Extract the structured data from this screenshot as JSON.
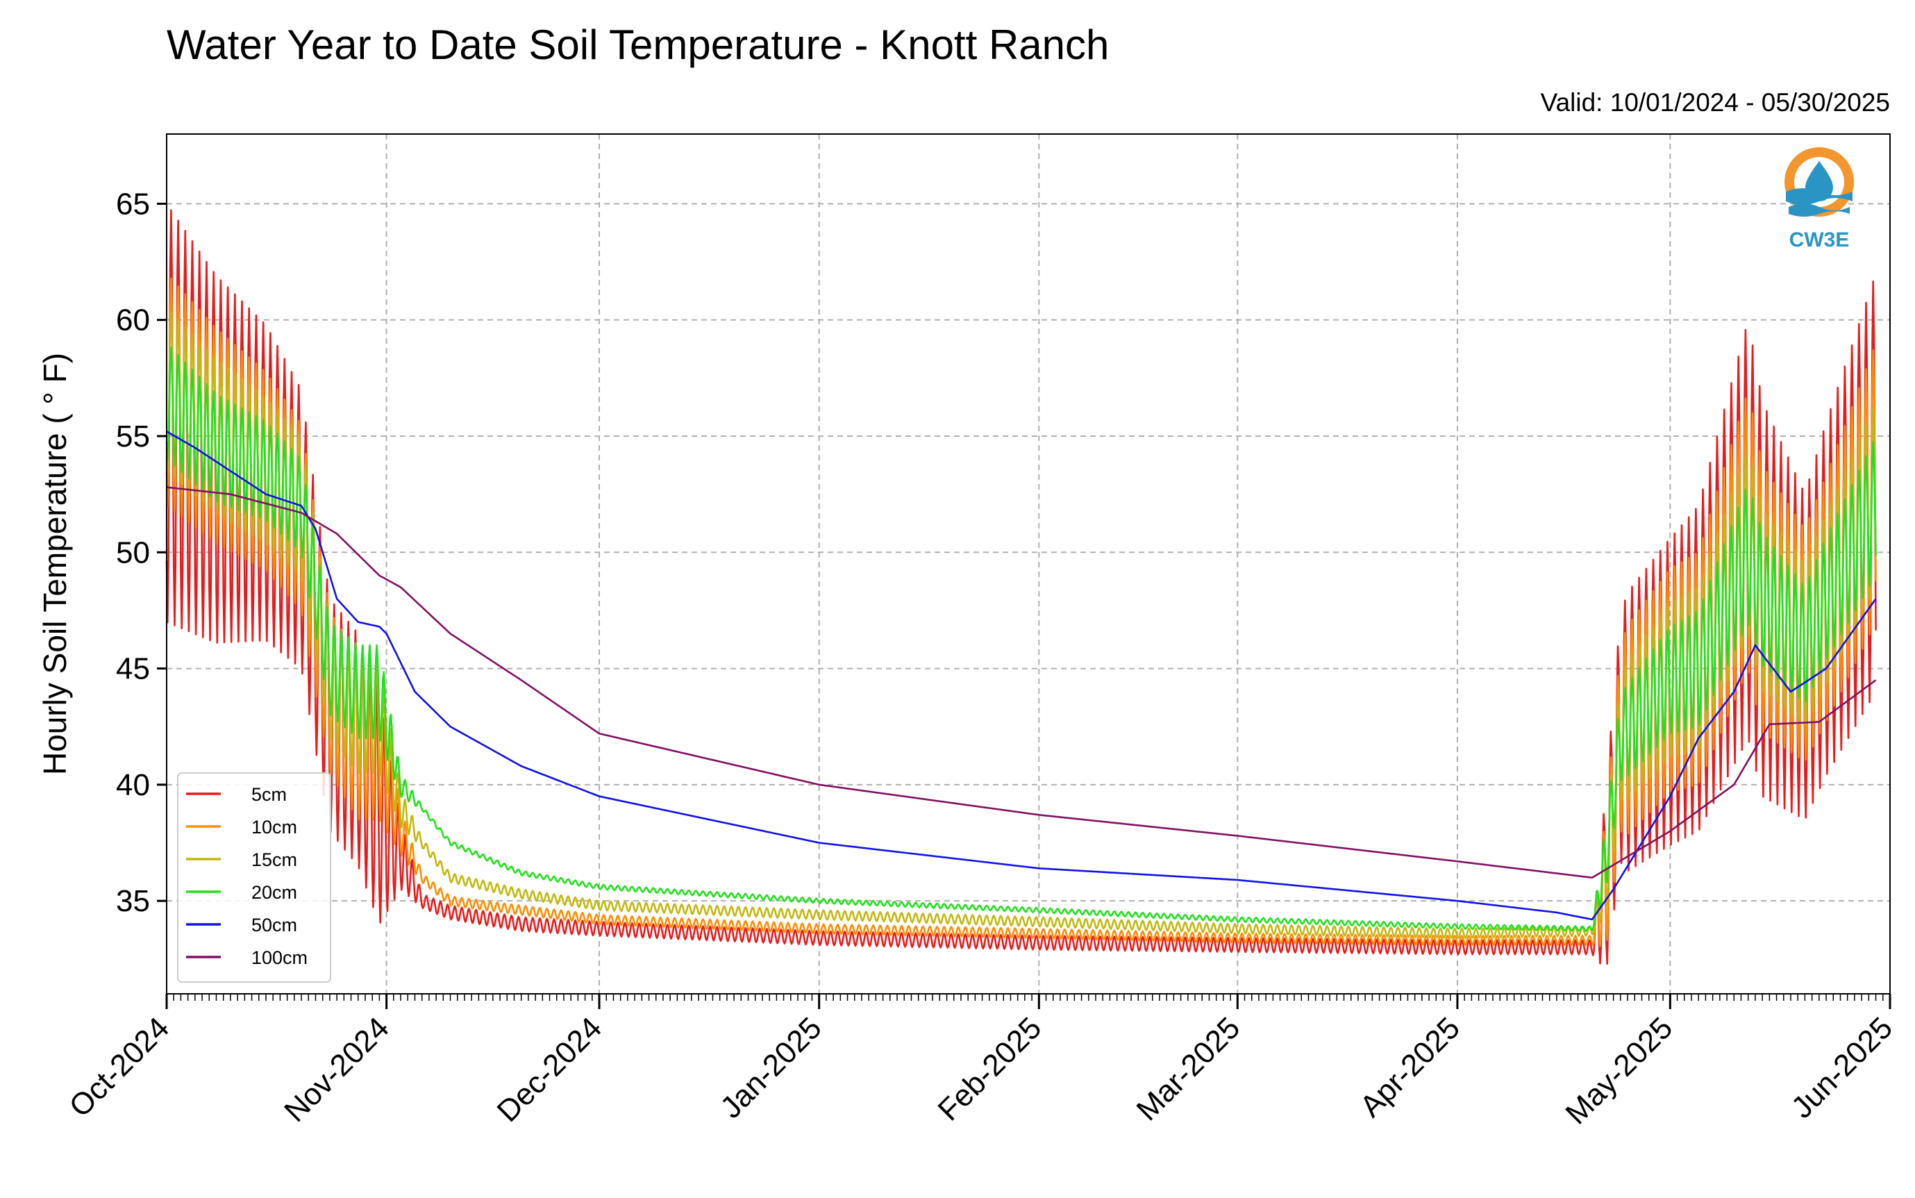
{
  "chart_data": {
    "type": "line",
    "title": "Water Year to Date Soil Temperature - Knott Ranch",
    "subtitle": "Valid: 10/01/2024 - 05/30/2025",
    "ylabel": "Hourly Soil Temperature ( ° F)",
    "xlabel": "",
    "x_axis": "time",
    "xlim": [
      "2024-10-01",
      "2025-06-01"
    ],
    "ylim": [
      31,
      68
    ],
    "x_tick_labels": [
      "Oct-2024",
      "Nov-2024",
      "Dec-2024",
      "Jan-2025",
      "Feb-2025",
      "Mar-2025",
      "Apr-2025",
      "May-2025",
      "Jun-2025"
    ],
    "x_ticks": [
      "2024-10-01",
      "2024-11-01",
      "2024-12-01",
      "2025-01-01",
      "2025-02-01",
      "2025-03-01",
      "2025-04-01",
      "2025-05-01",
      "2025-06-01"
    ],
    "y_ticks": [
      35,
      40,
      45,
      50,
      55,
      60,
      65
    ],
    "grid": true,
    "legend_position": "lower-left",
    "logo_text": "CW3E",
    "series": [
      {
        "name": "5cm",
        "color": "#e81b1b",
        "base": [
          [
            "2024-10-01",
            56
          ],
          [
            "2024-10-08",
            54
          ],
          [
            "2024-10-15",
            53
          ],
          [
            "2024-10-20",
            51
          ],
          [
            "2024-10-24",
            43
          ],
          [
            "2024-10-28",
            41.5
          ],
          [
            "2024-10-31",
            39
          ],
          [
            "2024-11-03",
            37
          ],
          [
            "2024-11-06",
            35
          ],
          [
            "2024-11-10",
            34.5
          ],
          [
            "2024-11-20",
            34
          ],
          [
            "2024-12-01",
            33.8
          ],
          [
            "2025-01-01",
            33.4
          ],
          [
            "2025-02-01",
            33.2
          ],
          [
            "2025-03-01",
            33.1
          ],
          [
            "2025-04-01",
            33
          ],
          [
            "2025-04-20",
            33
          ],
          [
            "2025-04-22",
            36
          ],
          [
            "2025-04-24",
            42
          ],
          [
            "2025-05-01",
            44
          ],
          [
            "2025-05-05",
            45
          ],
          [
            "2025-05-12",
            51
          ],
          [
            "2025-05-14",
            48
          ],
          [
            "2025-05-20",
            45.5
          ],
          [
            "2025-05-23",
            48
          ],
          [
            "2025-05-30",
            53
          ]
        ],
        "amp": [
          [
            "2024-10-01",
            9
          ],
          [
            "2024-10-20",
            6
          ],
          [
            "2024-10-24",
            5
          ],
          [
            "2024-10-31",
            5
          ],
          [
            "2024-11-03",
            1.5
          ],
          [
            "2024-11-06",
            0.3
          ],
          [
            "2025-04-20",
            0.3
          ],
          [
            "2025-04-22",
            4
          ],
          [
            "2025-04-25",
            6
          ],
          [
            "2025-05-05",
            7
          ],
          [
            "2025-05-12",
            9
          ],
          [
            "2025-05-20",
            7
          ],
          [
            "2025-05-30",
            9
          ]
        ]
      },
      {
        "name": "10cm",
        "color": "#ff8c00",
        "base": [
          [
            "2024-10-01",
            57
          ],
          [
            "2024-10-08",
            55
          ],
          [
            "2024-10-15",
            53.5
          ],
          [
            "2024-10-20",
            51.5
          ],
          [
            "2024-10-24",
            44
          ],
          [
            "2024-10-28",
            42
          ],
          [
            "2024-10-31",
            42
          ],
          [
            "2024-11-03",
            38
          ],
          [
            "2024-11-06",
            36
          ],
          [
            "2024-11-10",
            35
          ],
          [
            "2024-11-20",
            34.6
          ],
          [
            "2024-12-01",
            34.2
          ],
          [
            "2025-01-01",
            33.8
          ],
          [
            "2025-02-01",
            33.6
          ],
          [
            "2025-03-01",
            33.4
          ],
          [
            "2025-04-01",
            33.3
          ],
          [
            "2025-04-20",
            33.3
          ],
          [
            "2025-04-22",
            36
          ],
          [
            "2025-04-24",
            42
          ],
          [
            "2025-05-01",
            44.5
          ],
          [
            "2025-05-05",
            45
          ],
          [
            "2025-05-12",
            51
          ],
          [
            "2025-05-14",
            48
          ],
          [
            "2025-05-20",
            46
          ],
          [
            "2025-05-23",
            48
          ],
          [
            "2025-05-30",
            53
          ]
        ],
        "amp": [
          [
            "2024-10-01",
            5
          ],
          [
            "2024-10-20",
            4
          ],
          [
            "2024-10-24",
            3.5
          ],
          [
            "2024-10-31",
            3.5
          ],
          [
            "2024-11-03",
            1
          ],
          [
            "2024-11-06",
            0.2
          ],
          [
            "2025-04-20",
            0.2
          ],
          [
            "2025-04-22",
            3
          ],
          [
            "2025-04-25",
            4.5
          ],
          [
            "2025-05-05",
            5
          ],
          [
            "2025-05-12",
            6
          ],
          [
            "2025-05-20",
            5
          ],
          [
            "2025-05-30",
            6
          ]
        ]
      },
      {
        "name": "15cm",
        "color": "#c2b80f",
        "base": [
          [
            "2024-10-01",
            57
          ],
          [
            "2024-10-08",
            55
          ],
          [
            "2024-10-15",
            53.5
          ],
          [
            "2024-10-20",
            52
          ],
          [
            "2024-10-24",
            44.5
          ],
          [
            "2024-10-28",
            43
          ],
          [
            "2024-10-31",
            43
          ],
          [
            "2024-11-03",
            39
          ],
          [
            "2024-11-06",
            37.5
          ],
          [
            "2024-11-10",
            36
          ],
          [
            "2024-11-20",
            35.3
          ],
          [
            "2024-12-01",
            34.8
          ],
          [
            "2025-01-01",
            34.4
          ],
          [
            "2025-02-01",
            34.1
          ],
          [
            "2025-03-01",
            33.8
          ],
          [
            "2025-04-01",
            33.6
          ],
          [
            "2025-04-20",
            33.7
          ],
          [
            "2025-04-22",
            36.5
          ],
          [
            "2025-04-24",
            42
          ],
          [
            "2025-05-01",
            44.5
          ],
          [
            "2025-05-05",
            45
          ],
          [
            "2025-05-12",
            50.5
          ],
          [
            "2025-05-14",
            48
          ],
          [
            "2025-05-20",
            46
          ],
          [
            "2025-05-23",
            48
          ],
          [
            "2025-05-30",
            52.5
          ]
        ],
        "amp": [
          [
            "2024-10-01",
            3.5
          ],
          [
            "2024-10-20",
            3
          ],
          [
            "2024-10-24",
            2.5
          ],
          [
            "2024-10-31",
            2.5
          ],
          [
            "2024-11-03",
            0.8
          ],
          [
            "2024-11-06",
            0.2
          ],
          [
            "2025-04-20",
            0.2
          ],
          [
            "2025-04-22",
            2
          ],
          [
            "2025-04-25",
            3
          ],
          [
            "2025-05-05",
            3.5
          ],
          [
            "2025-05-12",
            4
          ],
          [
            "2025-05-20",
            3.5
          ],
          [
            "2025-05-30",
            4
          ]
        ]
      },
      {
        "name": "20cm",
        "color": "#22e01c",
        "base": [
          [
            "2024-10-01",
            56.5
          ],
          [
            "2024-10-08",
            54.5
          ],
          [
            "2024-10-15",
            53.5
          ],
          [
            "2024-10-20",
            52
          ],
          [
            "2024-10-24",
            45
          ],
          [
            "2024-10-28",
            44
          ],
          [
            "2024-10-31",
            44
          ],
          [
            "2024-11-03",
            40
          ],
          [
            "2024-11-06",
            39
          ],
          [
            "2024-11-10",
            37.5
          ],
          [
            "2024-11-20",
            36.2
          ],
          [
            "2024-12-01",
            35.6
          ],
          [
            "2025-01-01",
            35
          ],
          [
            "2025-02-01",
            34.6
          ],
          [
            "2025-03-01",
            34.2
          ],
          [
            "2025-04-01",
            33.9
          ],
          [
            "2025-04-20",
            33.8
          ],
          [
            "2025-04-22",
            37
          ],
          [
            "2025-04-24",
            42
          ],
          [
            "2025-05-01",
            44.5
          ],
          [
            "2025-05-05",
            45
          ],
          [
            "2025-05-12",
            50
          ],
          [
            "2025-05-14",
            48
          ],
          [
            "2025-05-20",
            46
          ],
          [
            "2025-05-23",
            48
          ],
          [
            "2025-05-30",
            52
          ]
        ],
        "amp": [
          [
            "2024-10-01",
            2.5
          ],
          [
            "2024-10-20",
            2
          ],
          [
            "2024-10-24",
            2
          ],
          [
            "2024-10-31",
            2
          ],
          [
            "2024-11-03",
            0.5
          ],
          [
            "2024-11-06",
            0.1
          ],
          [
            "2025-04-20",
            0.1
          ],
          [
            "2025-04-22",
            1.5
          ],
          [
            "2025-04-25",
            2
          ],
          [
            "2025-05-05",
            2.5
          ],
          [
            "2025-05-12",
            3
          ],
          [
            "2025-05-20",
            2.5
          ],
          [
            "2025-05-30",
            3
          ]
        ]
      },
      {
        "name": "50cm",
        "color": "#1010e8",
        "base": [
          [
            "2024-10-01",
            55.2
          ],
          [
            "2024-10-05",
            54.5
          ],
          [
            "2024-10-10",
            53.5
          ],
          [
            "2024-10-15",
            52.5
          ],
          [
            "2024-10-20",
            52
          ],
          [
            "2024-10-22",
            51
          ],
          [
            "2024-10-25",
            48
          ],
          [
            "2024-10-28",
            47
          ],
          [
            "2024-10-31",
            46.8
          ],
          [
            "2024-11-01",
            46.5
          ],
          [
            "2024-11-05",
            44
          ],
          [
            "2024-11-10",
            42.5
          ],
          [
            "2024-11-20",
            40.8
          ],
          [
            "2024-12-01",
            39.5
          ],
          [
            "2025-01-01",
            37.5
          ],
          [
            "2025-02-01",
            36.4
          ],
          [
            "2025-03-01",
            35.9
          ],
          [
            "2025-04-01",
            35
          ],
          [
            "2025-04-15",
            34.5
          ],
          [
            "2025-04-20",
            34.2
          ],
          [
            "2025-04-23",
            35.5
          ],
          [
            "2025-05-01",
            39.5
          ],
          [
            "2025-05-05",
            42
          ],
          [
            "2025-05-10",
            44
          ],
          [
            "2025-05-13",
            46
          ],
          [
            "2025-05-18",
            44
          ],
          [
            "2025-05-23",
            45
          ],
          [
            "2025-05-30",
            48
          ]
        ],
        "amp": [
          [
            "2024-10-01",
            0
          ],
          [
            "2025-06-01",
            0
          ]
        ]
      },
      {
        "name": "100cm",
        "color": "#800f62",
        "base": [
          [
            "2024-10-01",
            52.8
          ],
          [
            "2024-10-10",
            52.5
          ],
          [
            "2024-10-20",
            51.7
          ],
          [
            "2024-10-25",
            50.8
          ],
          [
            "2024-10-31",
            49
          ],
          [
            "2024-11-03",
            48.5
          ],
          [
            "2024-11-10",
            46.5
          ],
          [
            "2024-11-20",
            44.5
          ],
          [
            "2024-12-01",
            42.2
          ],
          [
            "2025-01-01",
            40
          ],
          [
            "2025-02-01",
            38.7
          ],
          [
            "2025-03-01",
            37.8
          ],
          [
            "2025-04-01",
            36.7
          ],
          [
            "2025-04-20",
            36
          ],
          [
            "2025-05-01",
            38
          ],
          [
            "2025-05-10",
            40
          ],
          [
            "2025-05-15",
            42.6
          ],
          [
            "2025-05-22",
            42.7
          ],
          [
            "2025-05-30",
            44.5
          ]
        ],
        "amp": [
          [
            "2024-10-01",
            0
          ],
          [
            "2025-06-01",
            0
          ]
        ]
      }
    ]
  }
}
